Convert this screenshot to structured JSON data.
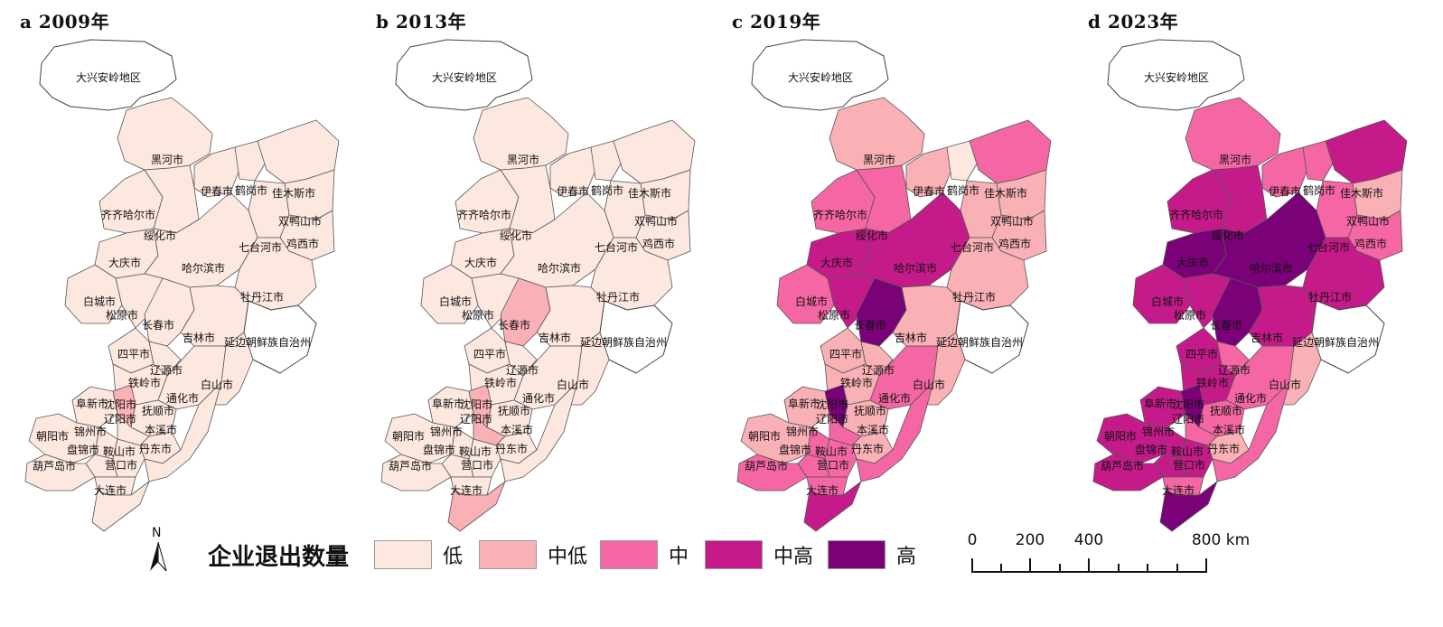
{
  "panels": [
    {
      "title": "a  2009年",
      "year": "2009"
    },
    {
      "title": "b  2013年",
      "year": "2013"
    },
    {
      "title": "c  2019年",
      "year": "2019"
    },
    {
      "title": "d  2023年",
      "year": "2023"
    }
  ],
  "colors": {
    "低": "#fde8e0",
    "中低": "#f9b1b6",
    "中": "#f567a4",
    "中高": "#c51b8a",
    "高": "#7a0177",
    "outline": "#ffffff"
  },
  "regions": [
    {
      "name": "大兴安岭地区",
      "levels": [
        "none",
        "none",
        "none",
        "none"
      ]
    },
    {
      "name": "黑河市",
      "levels": [
        "低",
        "低",
        "中低",
        "中"
      ]
    },
    {
      "name": "伊春市",
      "levels": [
        "低",
        "低",
        "中低",
        "中"
      ]
    },
    {
      "name": "鹤岗市",
      "levels": [
        "低",
        "低",
        "低",
        "中"
      ]
    },
    {
      "name": "佳木斯市",
      "levels": [
        "低",
        "低",
        "中",
        "中高"
      ]
    },
    {
      "name": "齐齐哈尔市",
      "levels": [
        "低",
        "低",
        "中",
        "中高"
      ]
    },
    {
      "name": "双鸭山市",
      "levels": [
        "低",
        "低",
        "中低",
        "中低"
      ]
    },
    {
      "name": "绥化市",
      "levels": [
        "低",
        "低",
        "中",
        "中高"
      ]
    },
    {
      "name": "七台河市",
      "levels": [
        "低",
        "低",
        "中低",
        "中"
      ]
    },
    {
      "name": "鸡西市",
      "levels": [
        "低",
        "低",
        "中低",
        "中"
      ]
    },
    {
      "name": "大庆市",
      "levels": [
        "低",
        "低",
        "中高",
        "高"
      ]
    },
    {
      "name": "哈尔滨市",
      "levels": [
        "低",
        "低",
        "中高",
        "高"
      ]
    },
    {
      "name": "牡丹江市",
      "levels": [
        "低",
        "低",
        "中低",
        "中高"
      ]
    },
    {
      "name": "白城市",
      "levels": [
        "低",
        "低",
        "中",
        "中高"
      ]
    },
    {
      "name": "松原市",
      "levels": [
        "低",
        "低",
        "中高",
        "中高"
      ]
    },
    {
      "name": "长春市",
      "levels": [
        "低",
        "中低",
        "高",
        "高"
      ]
    },
    {
      "name": "吉林市",
      "levels": [
        "低",
        "低",
        "中低",
        "中高"
      ]
    },
    {
      "name": "延边朝鲜族自治州",
      "levels": [
        "none",
        "none",
        "none",
        "none"
      ]
    },
    {
      "name": "四平市",
      "levels": [
        "低",
        "低",
        "中低",
        "中高"
      ]
    },
    {
      "name": "辽源市",
      "levels": [
        "低",
        "低",
        "中低",
        "中"
      ]
    },
    {
      "name": "铁岭市",
      "levels": [
        "低",
        "低",
        "中低",
        "中高"
      ]
    },
    {
      "name": "通化市",
      "levels": [
        "低",
        "低",
        "中",
        "中"
      ]
    },
    {
      "name": "白山市",
      "levels": [
        "低",
        "低",
        "中低",
        "中低"
      ]
    },
    {
      "name": "阜新市",
      "levels": [
        "低",
        "低",
        "中低",
        "中高"
      ]
    },
    {
      "name": "沈阳市",
      "levels": [
        "中低",
        "中低",
        "高",
        "高"
      ]
    },
    {
      "name": "抚顺市",
      "levels": [
        "低",
        "低",
        "中低",
        "中"
      ]
    },
    {
      "name": "辽阳市",
      "levels": [
        "低",
        "中低",
        "中",
        "中"
      ]
    },
    {
      "name": "朝阳市",
      "levels": [
        "低",
        "低",
        "中低",
        "中高"
      ]
    },
    {
      "name": "锦州市",
      "levels": [
        "低",
        "低",
        "中",
        "中高"
      ]
    },
    {
      "name": "本溪市",
      "levels": [
        "低",
        "低",
        "中低",
        "中低"
      ]
    },
    {
      "name": "盘锦市",
      "levels": [
        "低",
        "低",
        "中",
        "中高"
      ]
    },
    {
      "name": "鞍山市",
      "levels": [
        "低",
        "低",
        "中",
        "中高"
      ]
    },
    {
      "name": "丹东市",
      "levels": [
        "低",
        "低",
        "中",
        "中"
      ]
    },
    {
      "name": "葫芦岛市",
      "levels": [
        "低",
        "低",
        "中",
        "中高"
      ]
    },
    {
      "name": "营口市",
      "levels": [
        "低",
        "低",
        "中",
        "中"
      ]
    },
    {
      "name": "大连市",
      "levels": [
        "低",
        "中低",
        "中高",
        "高"
      ]
    }
  ],
  "legend": {
    "north_letter": "N",
    "title": "企业退出数量",
    "items": [
      "低",
      "中低",
      "中",
      "中高",
      "高"
    ]
  },
  "scalebar": {
    "labels": [
      "0",
      "200",
      "400",
      "800 km"
    ],
    "values_km": [
      0,
      200,
      400,
      800
    ]
  }
}
